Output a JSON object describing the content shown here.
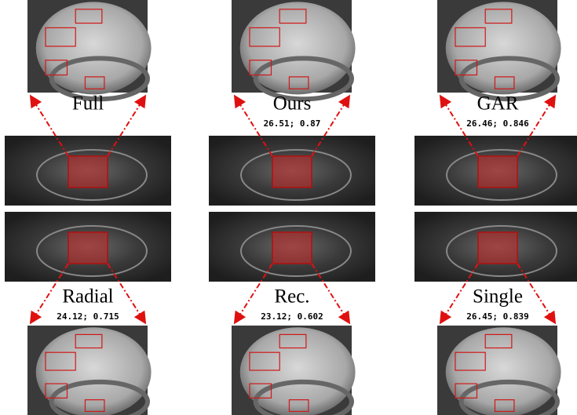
{
  "top": [
    {
      "label": "Full"
    },
    {
      "label": "Ours",
      "metrics": "26.51; 0.87"
    },
    {
      "label": "GAR",
      "metrics": "26.46; 0.846"
    }
  ],
  "bottom": [
    {
      "label": "Radial",
      "metrics": "24.12; 0.715"
    },
    {
      "label": "Rec.",
      "metrics": "23.12; 0.602"
    },
    {
      "label": "Single",
      "metrics": "26.45; 0.839"
    }
  ]
}
